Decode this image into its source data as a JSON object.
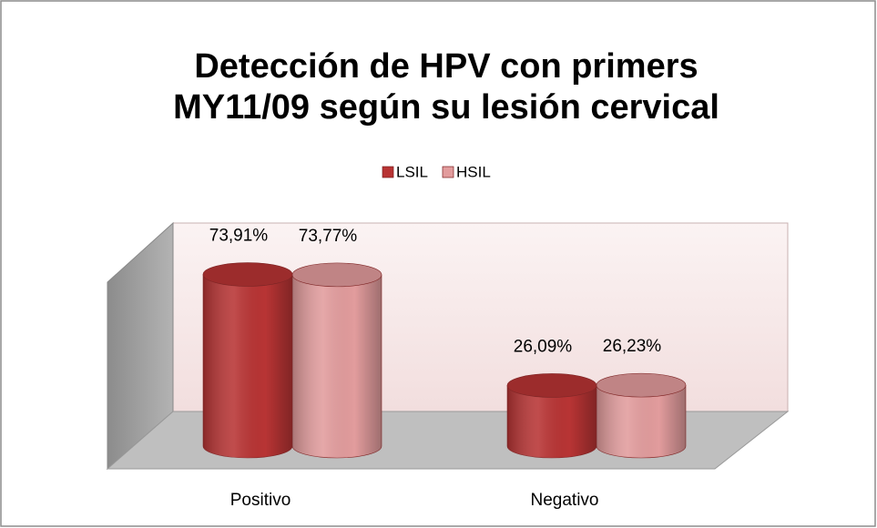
{
  "chart_data": {
    "type": "bar3d",
    "title": [
      "Detección de HPV con primers",
      "MY11/09 según su lesión cervical"
    ],
    "categories": [
      "Positivo",
      "Negativo"
    ],
    "series": [
      {
        "name": "LSIL",
        "color": "#b83434",
        "values": [
          73.91,
          26.09
        ],
        "value_labels": [
          "73,91%",
          "26,09%"
        ]
      },
      {
        "name": "HSIL",
        "color": "#e29c9d",
        "values": [
          73.77,
          26.23
        ],
        "value_labels": [
          "73,77%",
          "26,23%"
        ]
      }
    ],
    "legend": "top"
  }
}
